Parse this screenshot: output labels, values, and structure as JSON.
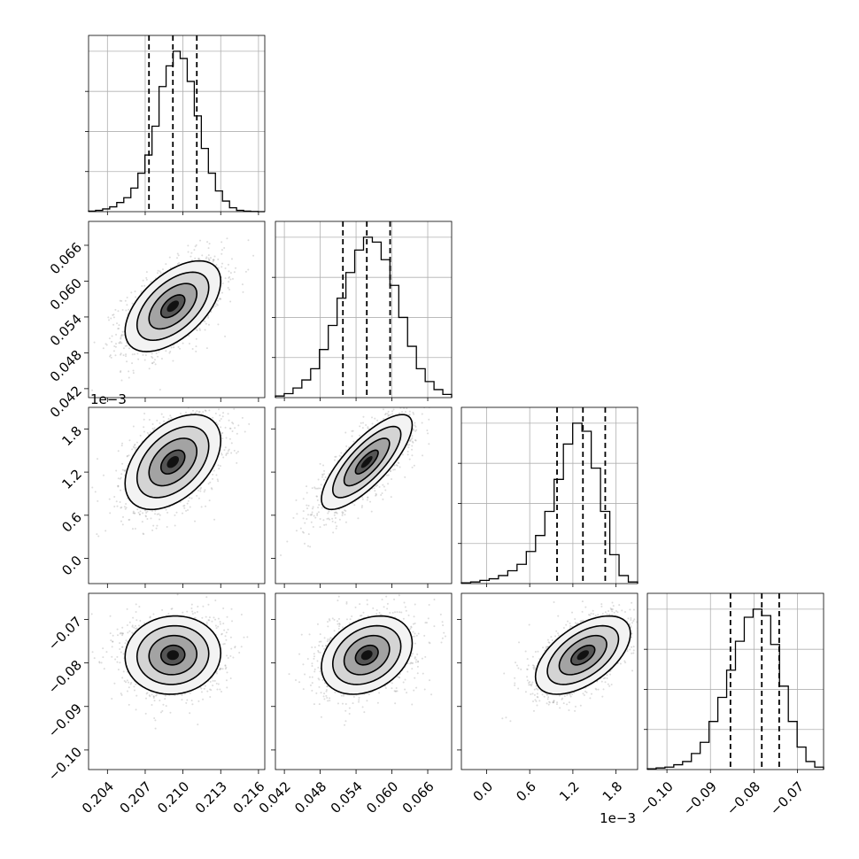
{
  "chart_data": {
    "type": "corner",
    "parameters": [
      {
        "range": [
          0.2025,
          0.2165
        ],
        "mean": 0.2092,
        "sd": 0.0019,
        "quantiles": [
          0.2073,
          0.2092,
          0.2111
        ],
        "ticks": [
          "0.204",
          "0.207",
          "0.210",
          "0.213",
          "0.216"
        ],
        "tick_values": [
          0.204,
          0.207,
          0.21,
          0.213,
          0.216
        ],
        "hist": [
          0.003,
          0.008,
          0.017,
          0.03,
          0.057,
          0.087,
          0.147,
          0.24,
          0.353,
          0.533,
          0.78,
          0.909,
          1.0,
          0.955,
          0.812,
          0.597,
          0.394,
          0.24,
          0.129,
          0.066,
          0.024,
          0.008,
          0.003,
          0.001,
          0.0
        ]
      },
      {
        "range": [
          0.0405,
          0.07
        ],
        "mean": 0.0558,
        "sd": 0.0038,
        "quantiles": [
          0.0518,
          0.0558,
          0.0597
        ],
        "ticks": [
          "0.042",
          "0.048",
          "0.054",
          "0.060",
          "0.066"
        ],
        "tick_values": [
          0.042,
          0.048,
          0.054,
          0.06,
          0.066
        ],
        "hist": [
          0.01,
          0.025,
          0.06,
          0.11,
          0.18,
          0.3,
          0.45,
          0.62,
          0.78,
          0.92,
          1.0,
          0.97,
          0.86,
          0.7,
          0.5,
          0.32,
          0.18,
          0.1,
          0.05,
          0.02
        ]
      },
      {
        "range": [
          -0.00035,
          0.0021
        ],
        "mean": 0.00134,
        "sd": 0.00033,
        "quantiles": [
          0.00098,
          0.00134,
          0.00165
        ],
        "ticks": [
          "0.0",
          "0.6",
          "1.2",
          "1.8"
        ],
        "tick_values": [
          0.0,
          0.0006,
          0.0012,
          0.0018
        ],
        "hist": [
          0.005,
          0.01,
          0.02,
          0.03,
          0.05,
          0.08,
          0.12,
          0.2,
          0.3,
          0.45,
          0.65,
          0.87,
          1.0,
          0.95,
          0.72,
          0.45,
          0.18,
          0.05,
          0.01
        ],
        "offset_label": "1e−3"
      },
      {
        "range": [
          -0.1045,
          -0.064
        ],
        "mean": -0.0782,
        "sd": 0.0045,
        "quantiles": [
          -0.0854,
          -0.0782,
          -0.0742
        ],
        "ticks": [
          "−0.10",
          "−0.09",
          "−0.08",
          "−0.07"
        ],
        "tick_values": [
          -0.1,
          -0.09,
          -0.08,
          -0.07
        ],
        "hist": [
          0.005,
          0.01,
          0.015,
          0.03,
          0.05,
          0.1,
          0.17,
          0.3,
          0.45,
          0.62,
          0.8,
          0.95,
          1.0,
          0.96,
          0.78,
          0.52,
          0.3,
          0.14,
          0.05,
          0.015
        ],
        "offset_label": ""
      }
    ],
    "correlations": [
      {
        "row": 1,
        "col": 0,
        "rho": 0.55
      },
      {
        "row": 2,
        "col": 0,
        "rho": 0.45
      },
      {
        "row": 2,
        "col": 1,
        "rho": 0.78
      },
      {
        "row": 3,
        "col": 0,
        "rho": 0.05
      },
      {
        "row": 3,
        "col": 1,
        "rho": 0.3
      },
      {
        "row": 3,
        "col": 2,
        "rho": 0.55
      }
    ],
    "contour_levels_sigma": [
      0.5,
      1.0,
      1.5,
      2.0
    ],
    "grid_in_histograms": true
  }
}
